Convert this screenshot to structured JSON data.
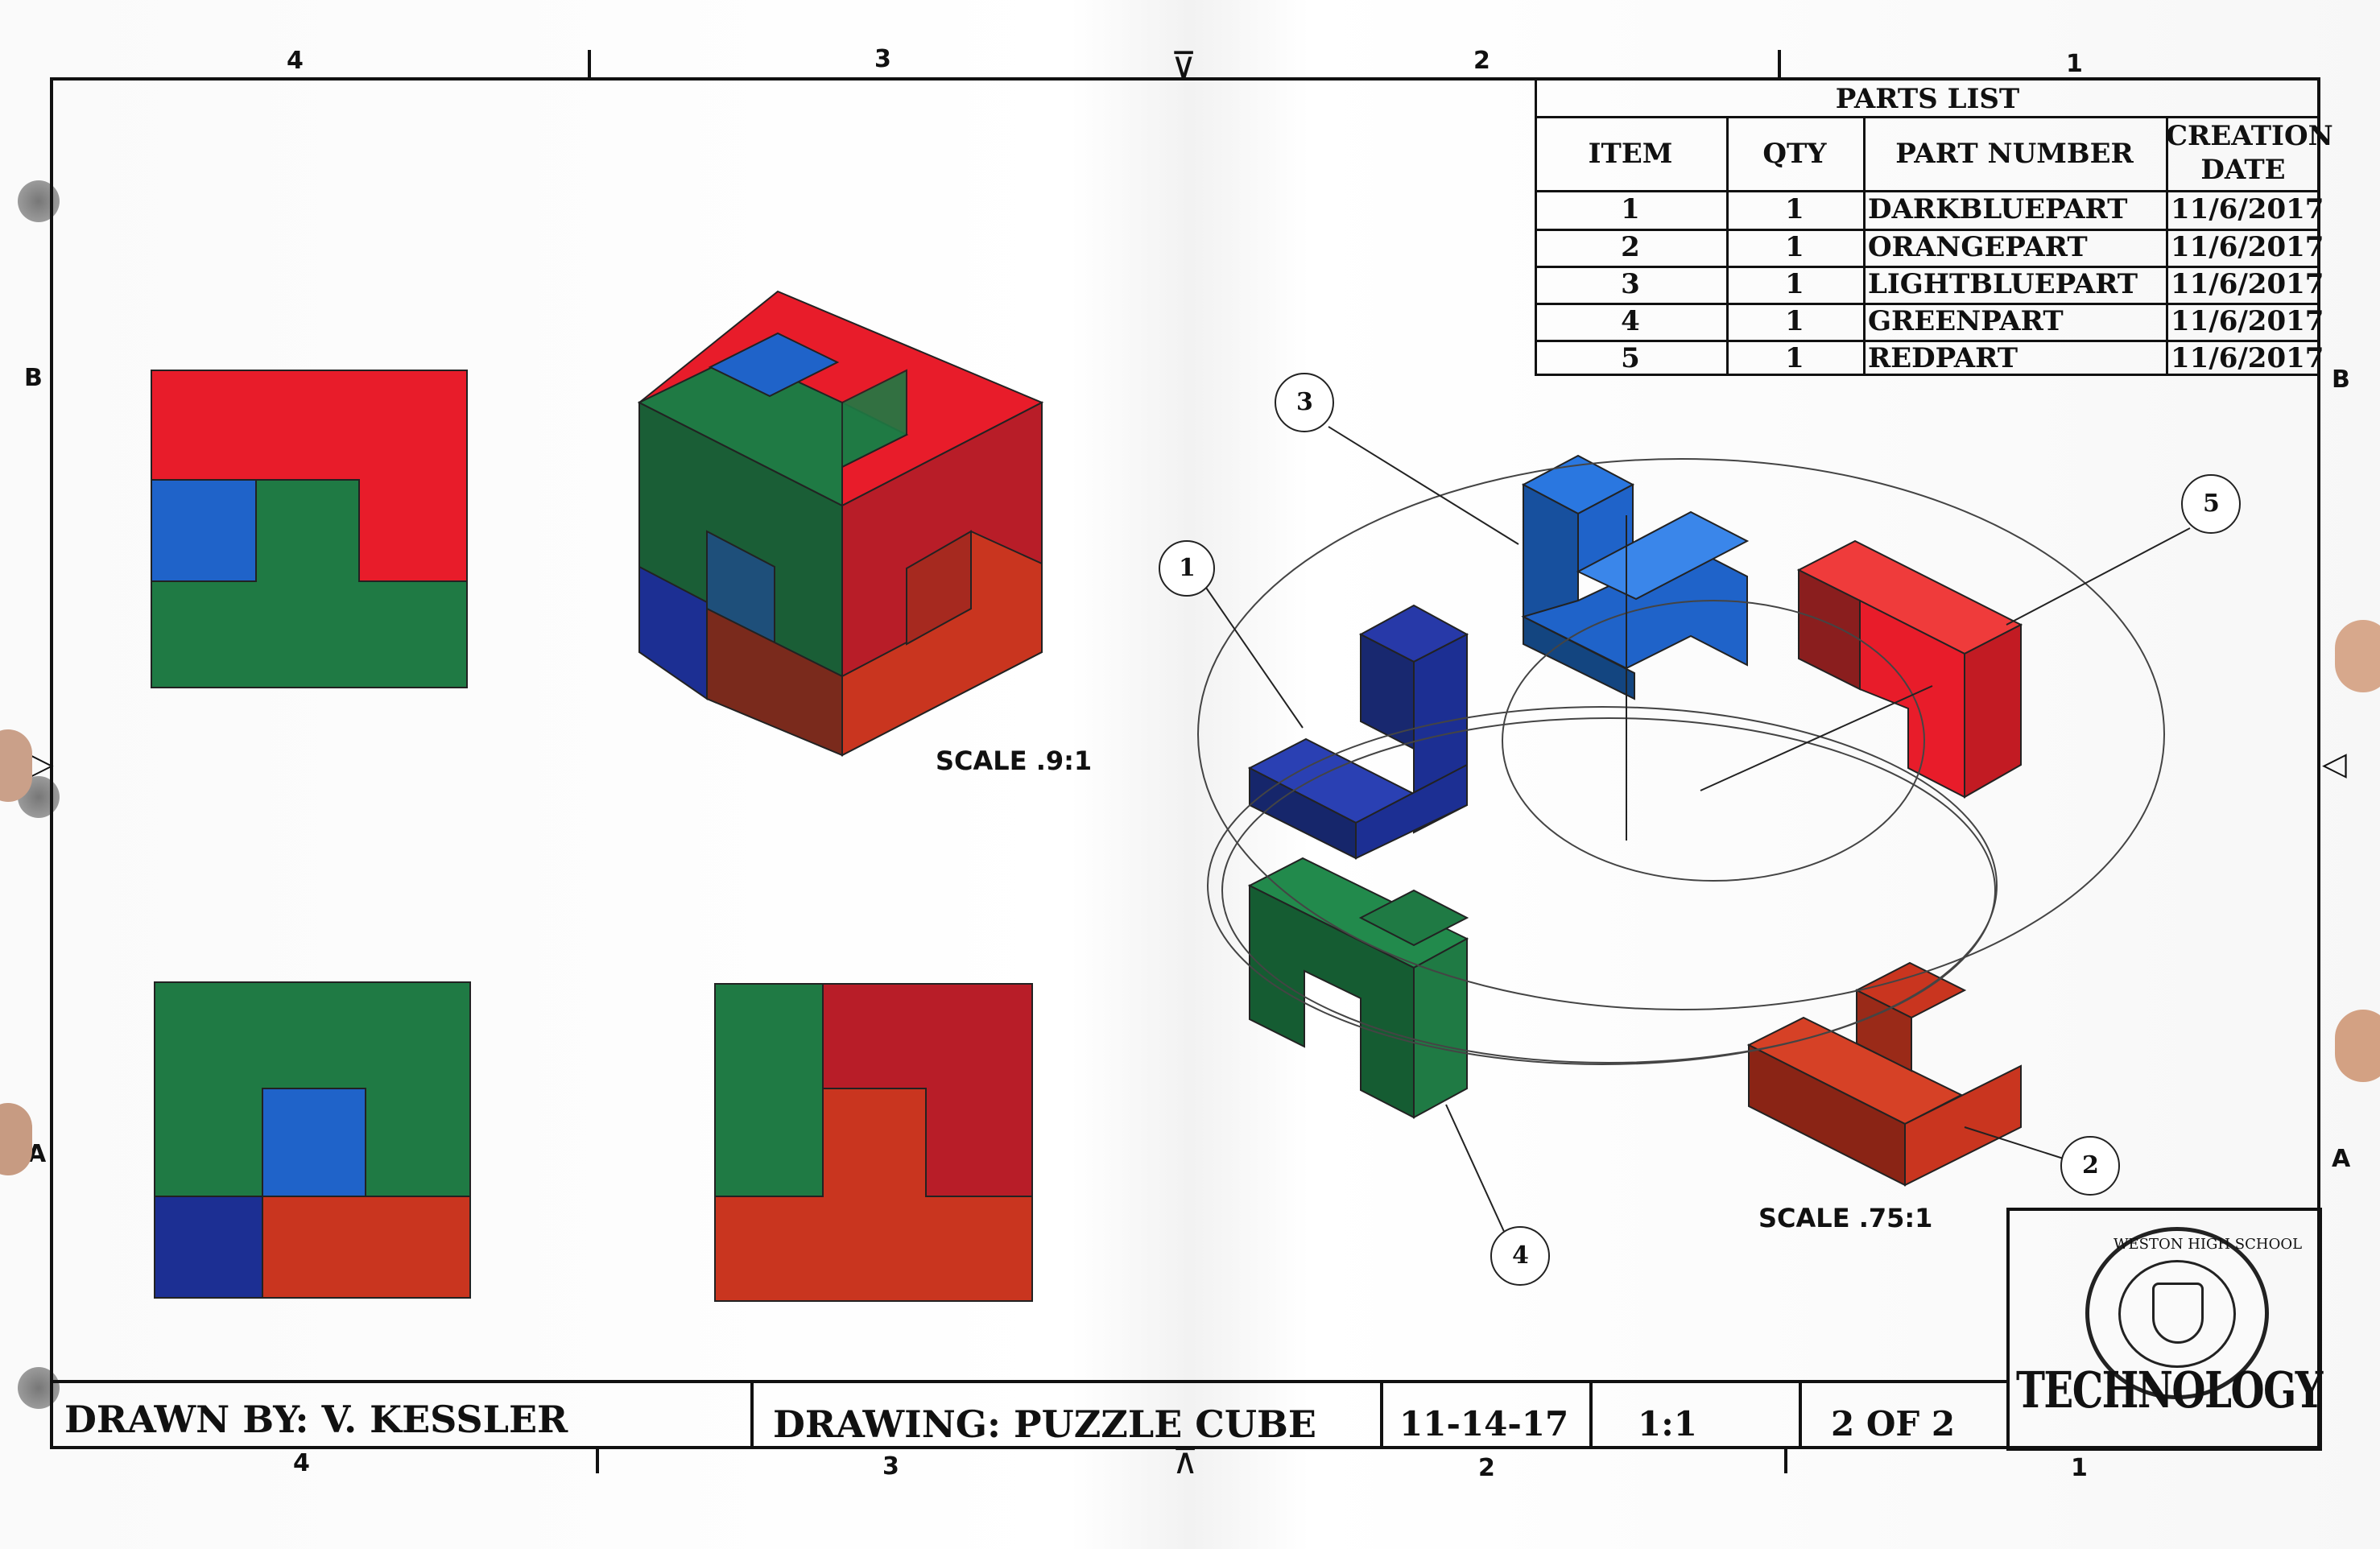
{
  "zones": {
    "top": [
      "4",
      "3",
      "2",
      "1"
    ],
    "bottom": [
      "4",
      "3",
      "2",
      "1"
    ],
    "left": [
      "B",
      "A"
    ],
    "right": [
      "B",
      "A"
    ]
  },
  "parts_list": {
    "title": "PARTS LIST",
    "headers": [
      "ITEM",
      "QTY",
      "PART NUMBER",
      "CREATION",
      "DATE"
    ],
    "rows": [
      {
        "item": "1",
        "qty": "1",
        "part": "DARKBLUEPART",
        "date": "11/6/2017"
      },
      {
        "item": "2",
        "qty": "1",
        "part": "ORANGEPART",
        "date": "11/6/2017"
      },
      {
        "item": "3",
        "qty": "1",
        "part": "LIGHTBLUEPART",
        "date": "11/6/2017"
      },
      {
        "item": "4",
        "qty": "1",
        "part": "GREENPART",
        "date": "11/6/2017"
      },
      {
        "item": "5",
        "qty": "1",
        "part": "REDPART",
        "date": "11/6/2017"
      }
    ]
  },
  "views": {
    "iso_scale": "SCALE .9:1",
    "exploded_scale": "SCALE .75:1",
    "balloons": [
      "1",
      "2",
      "3",
      "4",
      "5"
    ]
  },
  "title_block": {
    "drawn_by": "DRAWN BY: V. KESSLER",
    "drawing": "DRAWING:  PUZZLE CUBE",
    "date": "11-14-17",
    "scale": "1:1",
    "sheet": "2 OF 2",
    "logo_text": "TECHNOLOGY",
    "seal_text": "WESTON HIGH SCHOOL"
  },
  "colors": {
    "red": "#e81c2a",
    "green": "#1f7a44",
    "light_blue": "#1f63c9",
    "dark_blue": "#1c2f93",
    "orange": "#c9351f"
  }
}
